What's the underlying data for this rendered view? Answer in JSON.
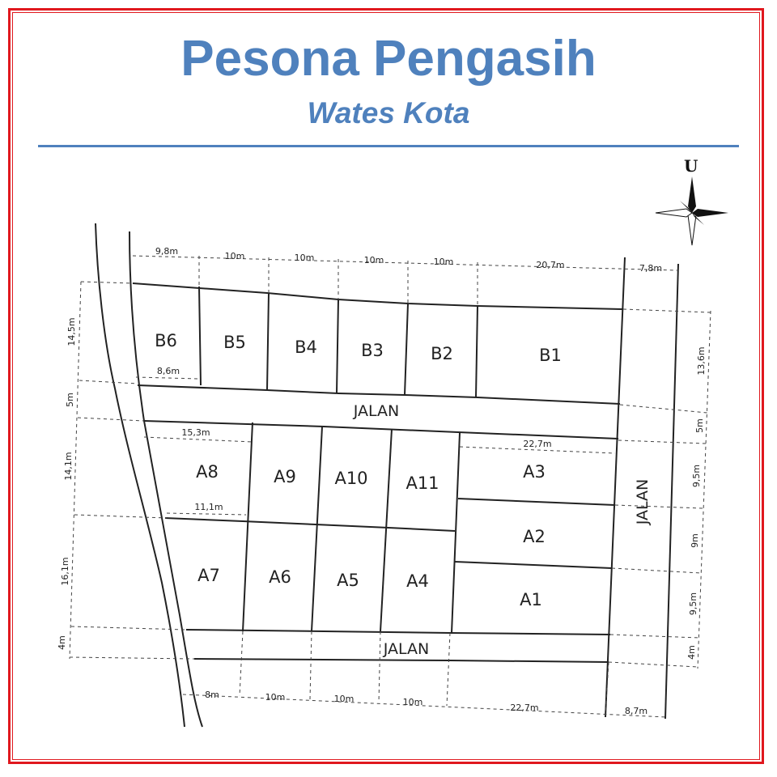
{
  "header": {
    "title": "Pesona Pengasih",
    "subtitle": "Wates Kota"
  },
  "map": {
    "north_label": "U",
    "plots_b": {
      "B6": "B6",
      "B5": "B5",
      "B4": "B4",
      "B3": "B3",
      "B2": "B2",
      "B1": "B1"
    },
    "plots_a": {
      "A1": "A1",
      "A2": "A2",
      "A3": "A3",
      "A4": "A4",
      "A5": "A5",
      "A6": "A6",
      "A7": "A7",
      "A8": "A8",
      "A9": "A9",
      "A10": "A10",
      "A11": "A11"
    },
    "roads": {
      "middle": "JALAN",
      "bottom": "JALAN",
      "east": "JALAN"
    },
    "dimensions": {
      "top": [
        "9,8m",
        "10m",
        "10m",
        "10m",
        "10m",
        "20,7m",
        "7,8m"
      ],
      "bottom": [
        "8m",
        "10m",
        "10m",
        "10m",
        "22,7m",
        "8,7m"
      ],
      "left": [
        "14,5m",
        "5m",
        "14,1m",
        "16,1m",
        "4m"
      ],
      "right": [
        "13,6m",
        "5m",
        "9,5m",
        "9m",
        "9,5m",
        "4m"
      ],
      "inner": {
        "b6_bottom": "8,6m",
        "a8_top": "15,3m",
        "a8_bottom": "11,1m",
        "a3_top": "22,7m"
      }
    }
  }
}
